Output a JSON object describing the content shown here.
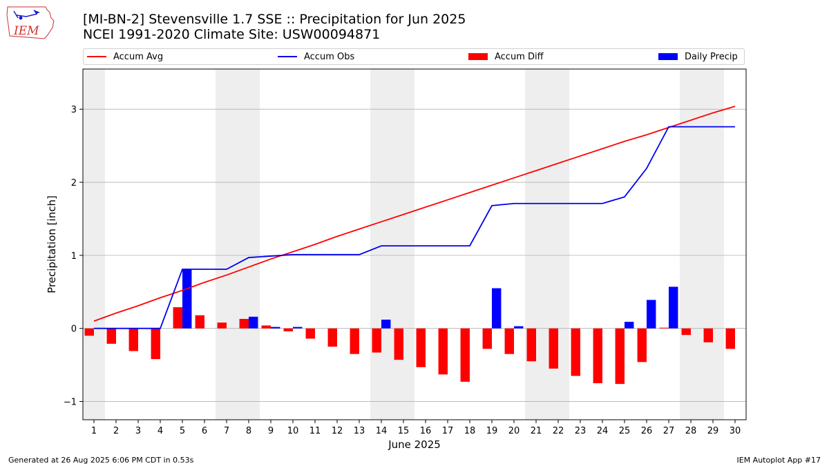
{
  "header": {
    "logo_text": "IEM",
    "title_line1": "[MI-BN-2] Stevensville 1.7 SSE :: Precipitation for Jun 2025",
    "title_line2": "NCEI 1991-2020 Climate Site: USW00094871"
  },
  "footer": {
    "left": "Generated at 26 Aug 2025 6:06 PM CDT in 0.53s",
    "right": "IEM Autoplot App #17"
  },
  "colors": {
    "accum_avg": "#ff0000",
    "accum_obs": "#0000ee",
    "accum_diff": "#ff0000",
    "daily_precip": "#0000ff",
    "weekend_shade": "#eeeeee",
    "grid": "#b0b0b0"
  },
  "chart_data": {
    "type": "bar",
    "xlabel": "June 2025",
    "ylabel": "Precipitation [inch]",
    "xlim": [
      0.5,
      30.5
    ],
    "ylim": [
      -1.25,
      3.55
    ],
    "yticks": [
      -1,
      0,
      1,
      2,
      3
    ],
    "ytick_labels": [
      "−1",
      "0",
      "1",
      "2",
      "3"
    ],
    "days": [
      1,
      2,
      3,
      4,
      5,
      6,
      7,
      8,
      9,
      10,
      11,
      12,
      13,
      14,
      15,
      16,
      17,
      18,
      19,
      20,
      21,
      22,
      23,
      24,
      25,
      26,
      27,
      28,
      29,
      30
    ],
    "weekend_shading": [
      1,
      7,
      8,
      14,
      15,
      21,
      22,
      28,
      29
    ],
    "grid": "y",
    "legend_placement": "top",
    "series": [
      {
        "name": "Accum Avg",
        "kind": "line",
        "values": [
          0.1,
          0.21,
          0.31,
          0.42,
          0.52,
          0.63,
          0.73,
          0.84,
          0.95,
          1.05,
          1.15,
          1.26,
          1.36,
          1.46,
          1.56,
          1.66,
          1.76,
          1.86,
          1.96,
          2.06,
          2.16,
          2.26,
          2.36,
          2.46,
          2.56,
          2.65,
          2.75,
          2.85,
          2.95,
          3.04
        ]
      },
      {
        "name": "Accum Obs",
        "kind": "line",
        "values": [
          0.0,
          0.0,
          0.0,
          0.0,
          0.81,
          0.81,
          0.81,
          0.97,
          0.99,
          1.01,
          1.01,
          1.01,
          1.01,
          1.13,
          1.13,
          1.13,
          1.13,
          1.13,
          1.68,
          1.71,
          1.71,
          1.71,
          1.71,
          1.71,
          1.8,
          2.19,
          2.76,
          2.76,
          2.76,
          2.76
        ]
      },
      {
        "name": "Accum Diff",
        "kind": "bar",
        "values": [
          -0.1,
          -0.21,
          -0.31,
          -0.42,
          0.29,
          0.18,
          0.08,
          0.13,
          0.04,
          -0.04,
          -0.14,
          -0.25,
          -0.35,
          -0.33,
          -0.43,
          -0.53,
          -0.63,
          -0.73,
          -0.28,
          -0.35,
          -0.45,
          -0.55,
          -0.65,
          -0.75,
          -0.76,
          -0.46,
          0.01,
          -0.09,
          -0.19,
          -0.28
        ]
      },
      {
        "name": "Daily Precip",
        "kind": "bar",
        "values": [
          0,
          0,
          0,
          0,
          0.81,
          0,
          0,
          0.16,
          0.02,
          0.02,
          0,
          0,
          0,
          0.12,
          0,
          0,
          0,
          0,
          0.55,
          0.03,
          0,
          0,
          0,
          0,
          0.09,
          0.39,
          0.57,
          0,
          0,
          0
        ]
      }
    ]
  }
}
